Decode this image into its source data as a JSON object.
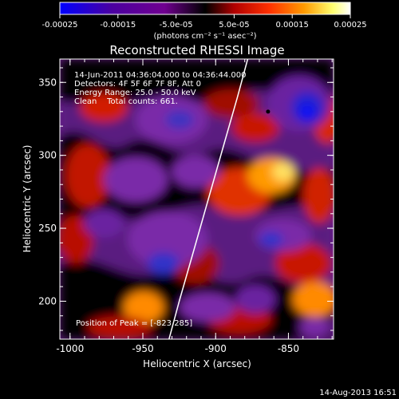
{
  "colorbar": {
    "tick_labels": [
      "-0.00025",
      "-0.00015",
      "-5.0e-05",
      "5.0e-05",
      "0.00015",
      "0.00025"
    ],
    "tick_values": [
      -0.00025,
      -0.00015,
      -5e-05,
      5e-05,
      0.00015,
      0.00025
    ],
    "range": [
      -0.00025,
      0.00025
    ],
    "unit_label": "(photons cm⁻² s⁻¹ asec⁻²)",
    "colors": [
      "#0000ff",
      "#4b0082",
      "#800080",
      "#000000",
      "#b00000",
      "#ff3000",
      "#ff9a00",
      "#ffff80",
      "#ffffff"
    ]
  },
  "chart_data": {
    "type": "heatmap",
    "title": "Reconstructed RHESSI Image",
    "xlabel": "Heliocentric X (arcsec)",
    "ylabel": "Heliocentric Y (arcsec)",
    "xlim": [
      -1007,
      -819
    ],
    "ylim": [
      174,
      366
    ],
    "x_ticks": [
      -1000,
      -950,
      -900,
      -850
    ],
    "x_tick_labels": [
      "-1000",
      "-950",
      "-900",
      "-850"
    ],
    "y_ticks": [
      200,
      250,
      300,
      350
    ],
    "y_tick_labels": [
      "200",
      "250",
      "300",
      "350"
    ],
    "info_lines": [
      "14-Jun-2011 04:36:04.000 to 04:36:44.000",
      "Detectors: 4F 5F 6F 7F 8F, Att 0",
      "Energy Range: 25.0 - 50.0 keV",
      "Clean    Total counts: 661."
    ],
    "peak_label": "Position of Peak = [-823,285]",
    "marker_point": {
      "x": -864,
      "y": 330
    },
    "limb_curve": {
      "x": [
        -932,
        -925,
        -915,
        -905,
        -895,
        -885,
        -878
      ],
      "y": [
        174,
        200,
        235,
        270,
        305,
        340,
        366
      ]
    }
  },
  "timestamp": "14-Aug-2013 16:51"
}
